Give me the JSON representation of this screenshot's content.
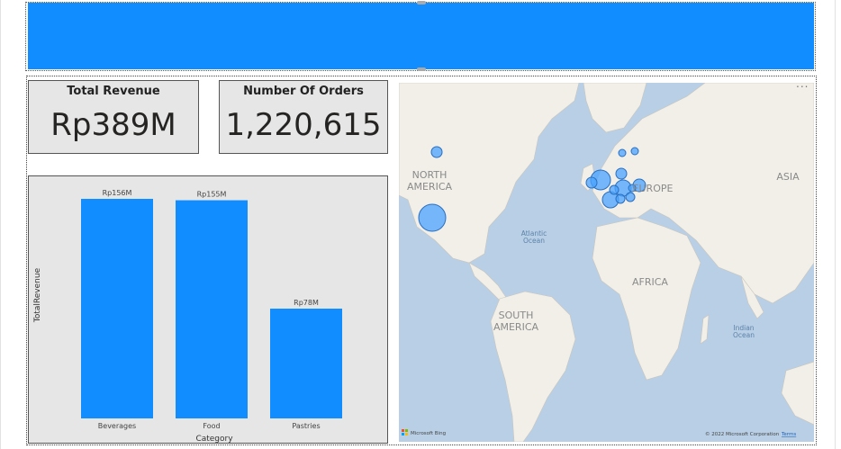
{
  "banner": {
    "color": "#118dff"
  },
  "cards": {
    "revenue": {
      "title": "Total Revenue",
      "value": "Rp389M"
    },
    "orders": {
      "title": "Number Of Orders",
      "value": "1,220,615"
    }
  },
  "chart_data": {
    "type": "bar",
    "categories": [
      "Beverages",
      "Food",
      "Pastries"
    ],
    "values": [
      156,
      155,
      78
    ],
    "data_labels": [
      "Rp156M",
      "Rp155M",
      "Rp78M"
    ],
    "xlabel": "Category",
    "ylabel": "TotalRevenue",
    "ylim": [
      0,
      156
    ],
    "color": "#118dff",
    "grid": false
  },
  "map": {
    "labels": {
      "north_america": [
        "NORTH",
        "AMERICA"
      ],
      "south_america": [
        "SOUTH",
        "AMERICA"
      ],
      "europe": "EUROPE",
      "africa": "AFRICA",
      "asia": "ASIA",
      "atlantic": [
        "Atlantic",
        "Ocean"
      ],
      "indian": [
        "Indian",
        "Ocean"
      ]
    },
    "attribution": "Microsoft Bing",
    "copyright": "© 2022 Microsoft Corporation",
    "terms": "Terms",
    "more_options": "..."
  }
}
